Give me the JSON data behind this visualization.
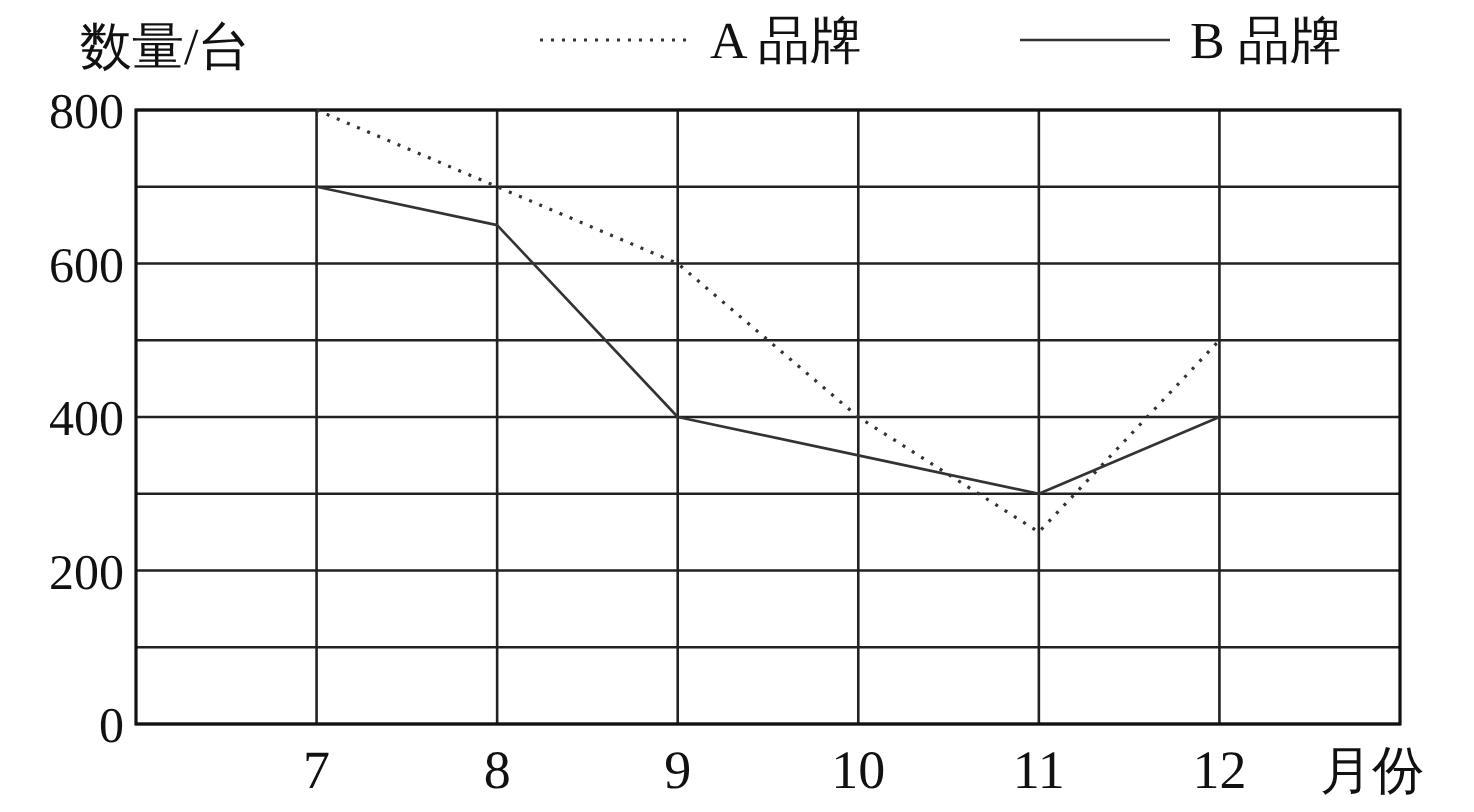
{
  "chart_data": {
    "type": "line",
    "ylabel": "数量/台",
    "xlabel": "月份",
    "x": [
      7,
      8,
      9,
      10,
      11,
      12
    ],
    "series": [
      {
        "name": "A 品牌",
        "color": "#333333",
        "line_style": "dotted",
        "values": [
          800,
          700,
          600,
          400,
          250,
          500
        ]
      },
      {
        "name": "B 品牌",
        "color": "#333333",
        "line_style": "solid",
        "values": [
          700,
          650,
          400,
          350,
          300,
          400
        ]
      }
    ],
    "xlim": [
      6,
      13
    ],
    "xticks": [
      7,
      8,
      9,
      10,
      11,
      12
    ],
    "ylim": [
      0,
      800
    ],
    "yticks": [
      0,
      {
        "value": 100,
        "label": null
      },
      200,
      {
        "value": 300,
        "label": null
      },
      400,
      {
        "value": 500,
        "label": null
      },
      600,
      {
        "value": 700,
        "label": null
      },
      800
    ],
    "grid": true,
    "legend": "top"
  }
}
